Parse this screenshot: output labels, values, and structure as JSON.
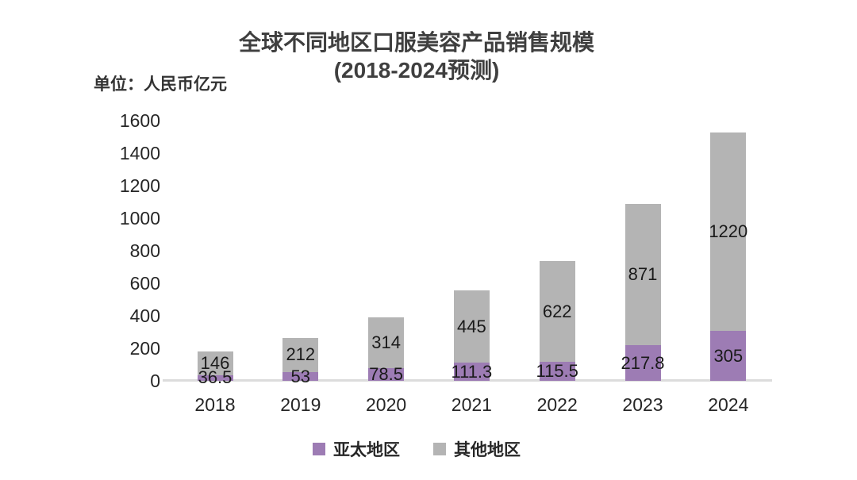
{
  "title": {
    "line1": "全球不同地区口服美容产品销售规模",
    "line2": "(2018-2024预测)"
  },
  "unit_label": "单位：人民币亿元",
  "chart_data": {
    "type": "bar",
    "stacked": true,
    "title": "全球不同地区口服美容产品销售规模 (2018-2024预测)",
    "xlabel": "",
    "ylabel": "单位：人民币亿元",
    "categories": [
      "2018",
      "2019",
      "2020",
      "2021",
      "2022",
      "2023",
      "2024"
    ],
    "series": [
      {
        "name": "亚太地区",
        "color": "#9d7cb4",
        "values": [
          36.5,
          53,
          78.5,
          111.3,
          115.5,
          217.8,
          305
        ]
      },
      {
        "name": "其他地区",
        "color": "#b4b4b4",
        "values": [
          146,
          212,
          314,
          445,
          622,
          871,
          1220
        ]
      }
    ],
    "data_labels": [
      [
        "36.5",
        "53",
        "78.5",
        "111.3",
        "115.5",
        "217.8",
        "305"
      ],
      [
        "146",
        "212",
        "314",
        "445",
        "622",
        "871",
        "1220"
      ]
    ],
    "ylim": [
      0,
      1600
    ],
    "ytick_step": 200,
    "ytick_labels": [
      "0",
      "200",
      "400",
      "600",
      "800",
      "1000",
      "1200",
      "1400",
      "1600"
    ],
    "grid": false,
    "legend_position": "bottom",
    "axis_line_color": "#dcdcdc",
    "label_color": "#1a1a1a"
  }
}
